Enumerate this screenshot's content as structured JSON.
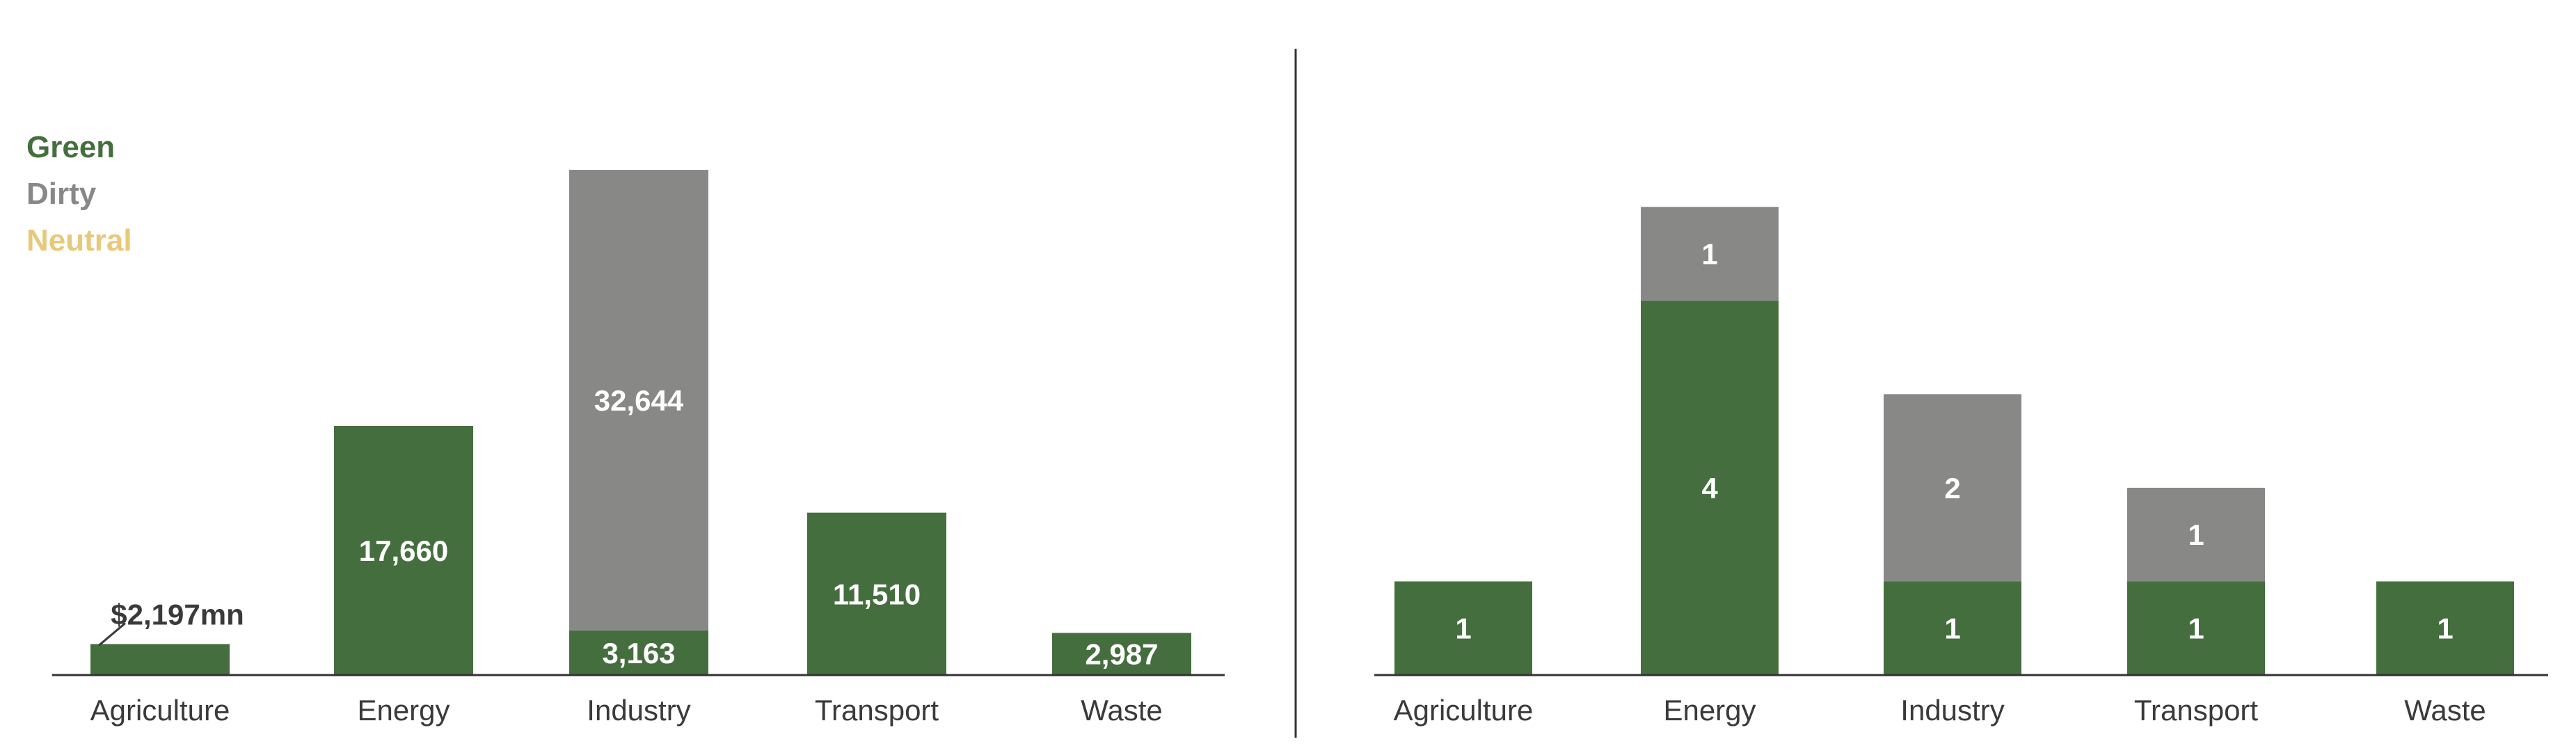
{
  "legend": {
    "items": [
      {
        "label": "Green",
        "color": "#456e3e"
      },
      {
        "label": "Dirty",
        "color": "#888887"
      },
      {
        "label": "Neutral",
        "color": "#e8c97a"
      }
    ]
  },
  "chart_data": [
    {
      "type": "bar",
      "stacked": true,
      "categories": [
        "Agriculture",
        "Energy",
        "Industry",
        "Transport",
        "Waste"
      ],
      "series": [
        {
          "name": "Green",
          "color": "#456e3e",
          "values": [
            2197,
            17660,
            3163,
            11510,
            2987
          ]
        },
        {
          "name": "Dirty",
          "color": "#888887",
          "values": [
            0,
            0,
            32644,
            0,
            0
          ]
        },
        {
          "name": "Neutral",
          "color": "#e8c97a",
          "values": [
            0,
            0,
            0,
            0,
            0
          ]
        }
      ],
      "data_labels": [
        [
          "$2,197mn",
          "17,660",
          "3,163",
          "11,510",
          "2,987"
        ],
        [
          "",
          "",
          "32,644",
          "",
          ""
        ],
        [
          "",
          "",
          "",
          "",
          ""
        ]
      ],
      "ylim": [
        0,
        36500
      ],
      "grid": false,
      "legend": "top-left"
    },
    {
      "type": "bar",
      "stacked": true,
      "categories": [
        "Agriculture",
        "Energy",
        "Industry",
        "Transport",
        "Waste"
      ],
      "series": [
        {
          "name": "Green",
          "color": "#456e3e",
          "values": [
            1,
            4,
            1,
            1,
            1
          ]
        },
        {
          "name": "Dirty",
          "color": "#888887",
          "values": [
            0,
            1,
            2,
            1,
            0
          ]
        },
        {
          "name": "Neutral",
          "color": "#e8c97a",
          "values": [
            0,
            0,
            0,
            0,
            0
          ]
        }
      ],
      "data_labels": [
        [
          "1",
          "4",
          "1",
          "1",
          "1"
        ],
        [
          "",
          "1",
          "2",
          "1",
          ""
        ],
        [
          "",
          "",
          "",
          "",
          ""
        ]
      ],
      "ylim": [
        0,
        5.5
      ],
      "grid": false,
      "legend": "top-left"
    }
  ]
}
